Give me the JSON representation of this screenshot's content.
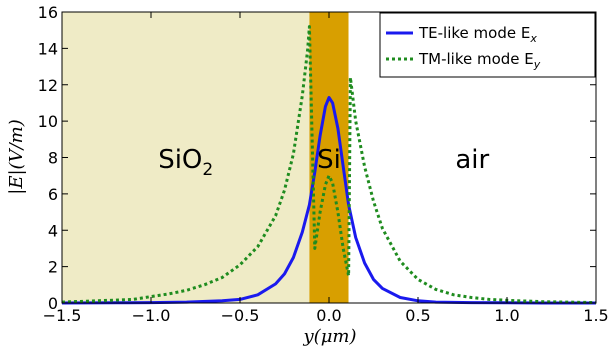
{
  "chart_data": {
    "type": "line",
    "xlabel": "y(μm)",
    "ylabel": "|E|(V/m)",
    "xlim": [
      -1.5,
      1.5
    ],
    "ylim": [
      0,
      16
    ],
    "xticks": [
      -1.5,
      -1.0,
      -0.5,
      0.0,
      0.5,
      1.0,
      1.5
    ],
    "xtick_labels": [
      "−1.5",
      "−1.0",
      "−0.5",
      "0.0",
      "0.5",
      "1.0",
      "1.5"
    ],
    "yticks": [
      0,
      2,
      4,
      6,
      8,
      10,
      12,
      14,
      16
    ],
    "ytick_labels": [
      "0",
      "2",
      "4",
      "6",
      "8",
      "10",
      "12",
      "14",
      "16"
    ],
    "grid": false,
    "legend_position": "top-right",
    "regions": [
      {
        "label": "SiO",
        "subscript": "2",
        "x_range": [
          -1.5,
          -0.11
        ],
        "color": "#efebc6"
      },
      {
        "label": "Si",
        "subscript": "",
        "x_range": [
          -0.11,
          0.11
        ],
        "color": "#d89f00"
      },
      {
        "label": "air",
        "subscript": "",
        "x_range": [
          0.11,
          1.5
        ],
        "color": "#ffffff"
      }
    ],
    "series": [
      {
        "name": "TE-like mode E",
        "subscript": "x",
        "color": "#1a1aee",
        "style": "solid",
        "x": [
          -1.5,
          -1.2,
          -1.0,
          -0.8,
          -0.6,
          -0.5,
          -0.4,
          -0.3,
          -0.25,
          -0.2,
          -0.15,
          -0.11,
          -0.08,
          -0.05,
          -0.02,
          0.0,
          0.02,
          0.05,
          0.08,
          0.11,
          0.15,
          0.2,
          0.25,
          0.3,
          0.4,
          0.5,
          0.6,
          0.8,
          1.0,
          1.2,
          1.5
        ],
        "y": [
          0.0,
          0.01,
          0.02,
          0.05,
          0.12,
          0.2,
          0.45,
          1.05,
          1.6,
          2.5,
          3.9,
          5.4,
          7.2,
          9.2,
          10.8,
          11.3,
          11.0,
          9.6,
          7.5,
          5.4,
          3.6,
          2.2,
          1.3,
          0.8,
          0.3,
          0.12,
          0.05,
          0.02,
          0.01,
          0.0,
          0.0
        ]
      },
      {
        "name": "TM-like mode E",
        "subscript": "y",
        "color": "#1f8c1f",
        "style": "dotted",
        "x": [
          -1.5,
          -1.3,
          -1.1,
          -1.0,
          -0.9,
          -0.8,
          -0.7,
          -0.6,
          -0.5,
          -0.4,
          -0.3,
          -0.25,
          -0.2,
          -0.15,
          -0.12,
          -0.11,
          -0.08,
          -0.05,
          -0.02,
          0.0,
          0.02,
          0.05,
          0.08,
          0.11,
          0.12,
          0.15,
          0.2,
          0.25,
          0.3,
          0.4,
          0.5,
          0.6,
          0.7,
          0.8,
          0.9,
          1.0,
          1.2,
          1.5
        ],
        "y": [
          0.05,
          0.12,
          0.2,
          0.35,
          0.5,
          0.7,
          1.0,
          1.4,
          2.1,
          3.1,
          4.8,
          6.2,
          8.2,
          11.4,
          13.9,
          15.2,
          3.0,
          5.0,
          6.5,
          7.0,
          6.6,
          5.0,
          3.0,
          1.5,
          12.4,
          10.0,
          7.5,
          5.6,
          4.1,
          2.3,
          1.3,
          0.75,
          0.45,
          0.3,
          0.2,
          0.15,
          0.07,
          0.02
        ]
      }
    ]
  }
}
